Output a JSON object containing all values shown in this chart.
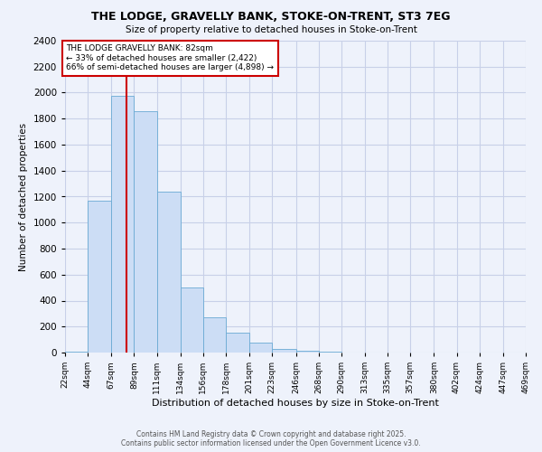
{
  "title_line1": "THE LODGE, GRAVELLY BANK, STOKE-ON-TRENT, ST3 7EG",
  "title_line2": "Size of property relative to detached houses in Stoke-on-Trent",
  "xlabel": "Distribution of detached houses by size in Stoke-on-Trent",
  "ylabel": "Number of detached properties",
  "bar_color": "#ccddf5",
  "bar_edge_color": "#6aaad4",
  "bins": [
    22,
    44,
    67,
    89,
    111,
    134,
    156,
    178,
    201,
    223,
    246,
    268,
    290,
    313,
    335,
    357,
    380,
    402,
    424,
    447,
    469
  ],
  "bin_labels": [
    "22sqm",
    "44sqm",
    "67sqm",
    "89sqm",
    "111sqm",
    "134sqm",
    "156sqm",
    "178sqm",
    "201sqm",
    "223sqm",
    "246sqm",
    "268sqm",
    "290sqm",
    "313sqm",
    "335sqm",
    "357sqm",
    "380sqm",
    "402sqm",
    "424sqm",
    "447sqm",
    "469sqm"
  ],
  "values": [
    5,
    1170,
    1975,
    1855,
    1240,
    500,
    270,
    155,
    80,
    30,
    15,
    5,
    2,
    1,
    0,
    0,
    0,
    0,
    0,
    0
  ],
  "property_size": 82,
  "property_label": "THE LODGE GRAVELLY BANK: 82sqm",
  "annotation_line1": "← 33% of detached houses are smaller (2,422)",
  "annotation_line2": "66% of semi-detached houses are larger (4,898) →",
  "vline_color": "#cc0000",
  "ylim": [
    0,
    2400
  ],
  "yticks": [
    0,
    200,
    400,
    600,
    800,
    1000,
    1200,
    1400,
    1600,
    1800,
    2000,
    2200,
    2400
  ],
  "footer_line1": "Contains HM Land Registry data © Crown copyright and database right 2025.",
  "footer_line2": "Contains public sector information licensed under the Open Government Licence v3.0.",
  "bg_color": "#eef2fb",
  "grid_color": "#c8d0e8"
}
